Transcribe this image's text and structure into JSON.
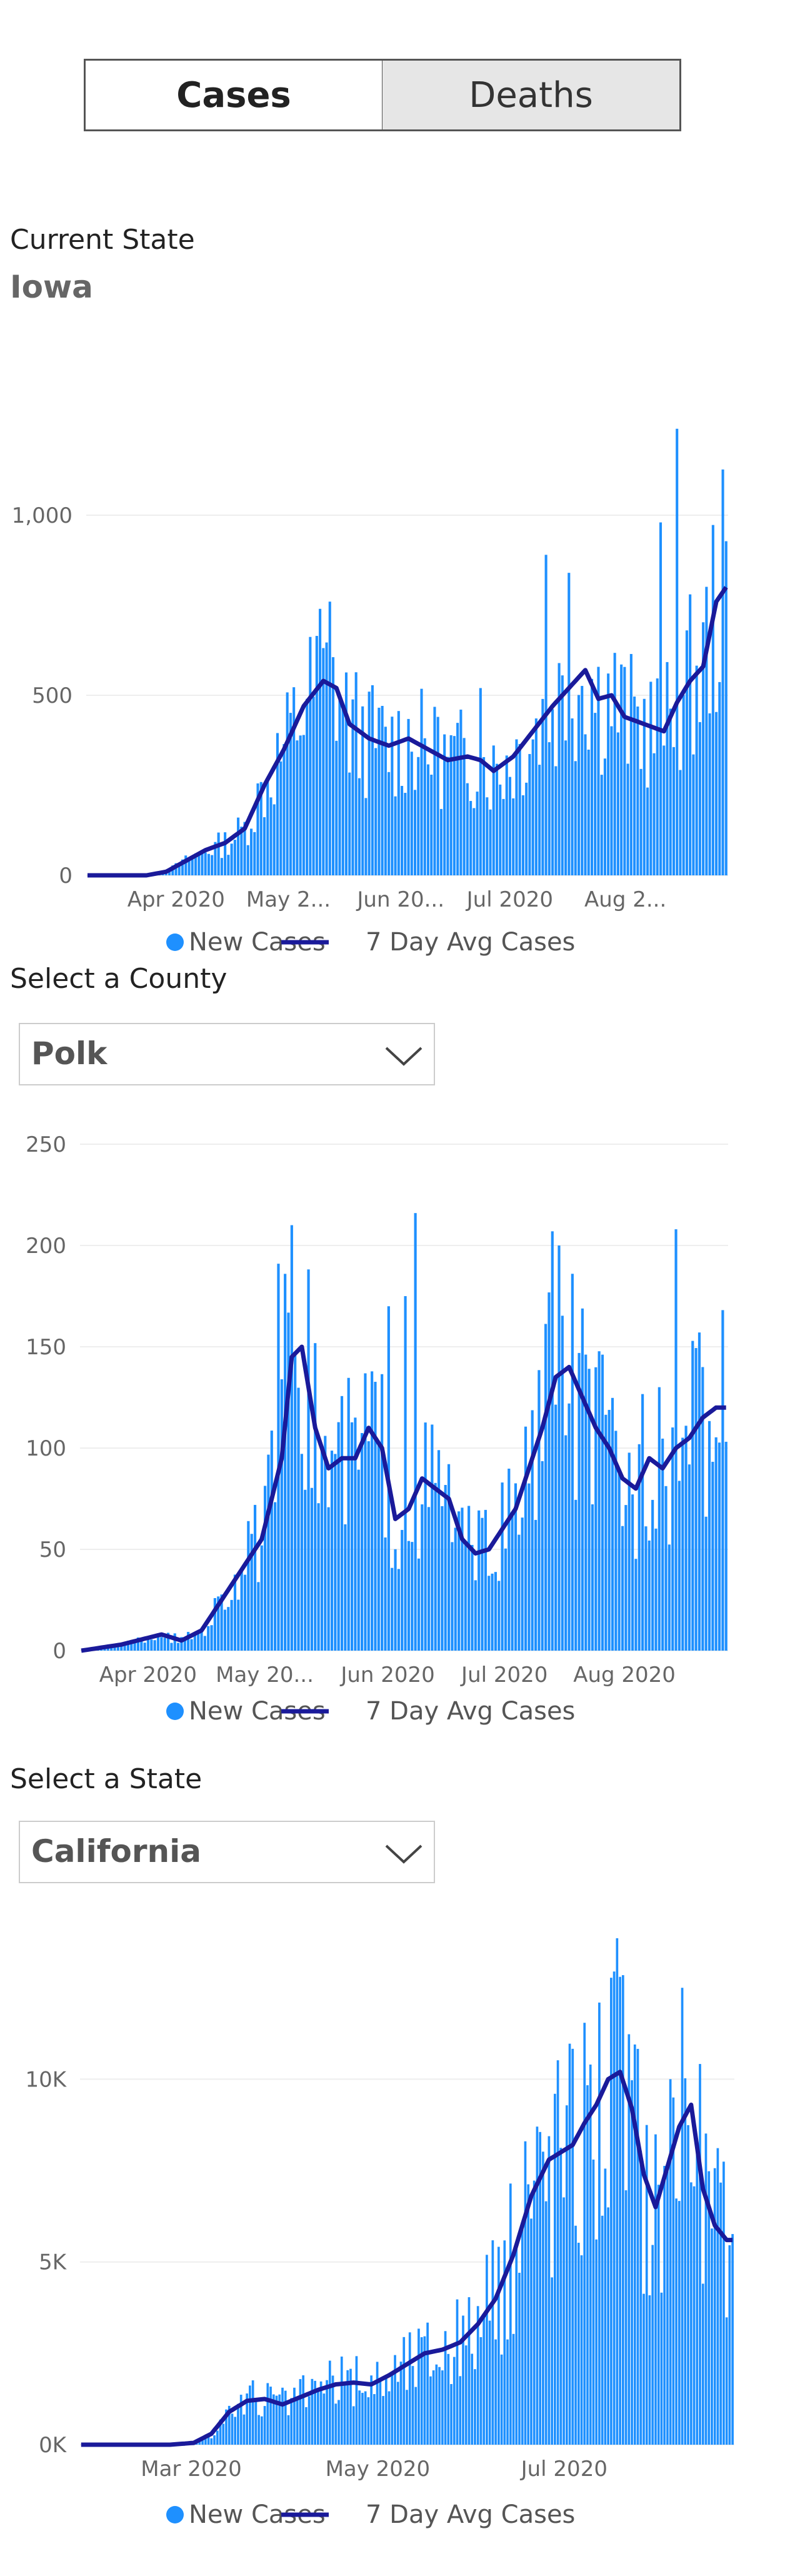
{
  "toggle": {
    "cases_label": "Cases",
    "deaths_label": "Deaths",
    "selected": "Cases"
  },
  "current_state": {
    "label": "Current State",
    "value": "Iowa"
  },
  "county_select": {
    "label": "Select a County",
    "value": "Polk"
  },
  "state_select": {
    "label": "Select a State",
    "value": "California"
  },
  "colors": {
    "bar": "#1e90ff",
    "avg_line": "#1a1a9a",
    "grid": "#eeeeee"
  },
  "legend": {
    "bar_label": "New Cases",
    "line_label": "7 Day Avg Cases"
  },
  "chart_data": [
    {
      "type": "bar",
      "name": "iowa",
      "x_tick_labels": [
        "Apr 2020",
        "May 2...",
        "Jun 20...",
        "Jul 2020",
        "Aug 2..."
      ],
      "y_tick_labels": [
        "0",
        "500",
        "1,000"
      ],
      "ylim": [
        0,
        1250
      ],
      "grid": true,
      "legend_position": "bottom",
      "series": [
        {
          "name": "New Cases",
          "kind": "bar"
        },
        {
          "name": "7 Day Avg Cases",
          "kind": "line"
        }
      ],
      "x_range": [
        "2020-03-01",
        "2020-08-31"
      ],
      "anchors_daily": [
        [
          0,
          0
        ],
        [
          18,
          0
        ],
        [
          24,
          10
        ],
        [
          30,
          40
        ],
        [
          36,
          70
        ],
        [
          42,
          90
        ],
        [
          48,
          130
        ],
        [
          54,
          250
        ],
        [
          60,
          350
        ],
        [
          66,
          470
        ],
        [
          72,
          540
        ],
        [
          76,
          520
        ],
        [
          80,
          420
        ],
        [
          86,
          380
        ],
        [
          92,
          360
        ],
        [
          98,
          380
        ],
        [
          104,
          350
        ],
        [
          110,
          320
        ],
        [
          116,
          330
        ],
        [
          120,
          320
        ],
        [
          124,
          290
        ],
        [
          130,
          330
        ],
        [
          136,
          400
        ],
        [
          142,
          470
        ],
        [
          148,
          530
        ],
        [
          152,
          570
        ],
        [
          156,
          490
        ],
        [
          160,
          500
        ],
        [
          164,
          440
        ],
        [
          170,
          420
        ],
        [
          176,
          400
        ],
        [
          180,
          480
        ],
        [
          184,
          540
        ],
        [
          188,
          580
        ],
        [
          192,
          760
        ],
        [
          195,
          800
        ]
      ],
      "peaks": [
        [
          180,
          1240
        ],
        [
          175,
          980
        ],
        [
          74,
          760
        ],
        [
          71,
          740
        ],
        [
          140,
          890
        ],
        [
          147,
          840
        ],
        [
          120,
          520
        ],
        [
          107,
          440
        ]
      ]
    },
    {
      "type": "bar",
      "name": "polk",
      "x_tick_labels": [
        "Apr 2020",
        "May 20...",
        "Jun 2020",
        "Jul 2020",
        "Aug 2020"
      ],
      "y_tick_labels": [
        "0",
        "50",
        "100",
        "150",
        "200",
        "250"
      ],
      "ylim": [
        0,
        250
      ],
      "grid": true,
      "legend_position": "bottom",
      "series": [
        {
          "name": "New Cases",
          "kind": "bar"
        },
        {
          "name": "7 Day Avg Cases",
          "kind": "line"
        }
      ],
      "x_range": [
        "2020-03-01",
        "2020-08-31"
      ],
      "anchors_daily": [
        [
          0,
          0
        ],
        [
          12,
          3
        ],
        [
          24,
          8
        ],
        [
          30,
          5
        ],
        [
          36,
          10
        ],
        [
          42,
          25
        ],
        [
          48,
          40
        ],
        [
          54,
          55
        ],
        [
          60,
          95
        ],
        [
          63,
          145
        ],
        [
          66,
          150
        ],
        [
          70,
          110
        ],
        [
          74,
          90
        ],
        [
          78,
          95
        ],
        [
          82,
          95
        ],
        [
          86,
          110
        ],
        [
          90,
          100
        ],
        [
          94,
          65
        ],
        [
          98,
          70
        ],
        [
          102,
          85
        ],
        [
          106,
          80
        ],
        [
          110,
          75
        ],
        [
          114,
          55
        ],
        [
          118,
          48
        ],
        [
          122,
          50
        ],
        [
          126,
          60
        ],
        [
          130,
          70
        ],
        [
          134,
          90
        ],
        [
          138,
          110
        ],
        [
          142,
          135
        ],
        [
          146,
          140
        ],
        [
          150,
          125
        ],
        [
          154,
          110
        ],
        [
          158,
          100
        ],
        [
          162,
          85
        ],
        [
          166,
          80
        ],
        [
          170,
          95
        ],
        [
          174,
          90
        ],
        [
          178,
          100
        ],
        [
          182,
          105
        ],
        [
          186,
          115
        ],
        [
          190,
          120
        ],
        [
          193,
          120
        ]
      ],
      "peaks": [
        [
          100,
          216
        ],
        [
          141,
          207
        ],
        [
          178,
          208
        ],
        [
          143,
          200
        ],
        [
          59,
          191
        ],
        [
          61,
          186
        ],
        [
          97,
          175
        ],
        [
          92,
          170
        ]
      ]
    },
    {
      "type": "bar",
      "name": "california",
      "x_tick_labels": [
        "Mar 2020",
        "May 2020",
        "Jul 2020"
      ],
      "y_tick_labels": [
        "0K",
        "5K",
        "10K"
      ],
      "ylim": [
        0,
        13000
      ],
      "grid": true,
      "legend_position": "bottom",
      "series": [
        {
          "name": "New Cases",
          "kind": "bar"
        },
        {
          "name": "7 Day Avg Cases",
          "kind": "line"
        }
      ],
      "x_range": [
        "2020-01-26",
        "2020-08-31"
      ],
      "anchors_daily": [
        [
          0,
          0
        ],
        [
          30,
          0
        ],
        [
          38,
          50
        ],
        [
          44,
          300
        ],
        [
          50,
          900
        ],
        [
          56,
          1200
        ],
        [
          62,
          1250
        ],
        [
          68,
          1100
        ],
        [
          74,
          1300
        ],
        [
          80,
          1500
        ],
        [
          86,
          1650
        ],
        [
          92,
          1700
        ],
        [
          98,
          1650
        ],
        [
          104,
          1900
        ],
        [
          110,
          2200
        ],
        [
          116,
          2500
        ],
        [
          122,
          2600
        ],
        [
          128,
          2800
        ],
        [
          134,
          3300
        ],
        [
          140,
          4000
        ],
        [
          146,
          5200
        ],
        [
          152,
          6800
        ],
        [
          158,
          7800
        ],
        [
          162,
          8000
        ],
        [
          166,
          8200
        ],
        [
          170,
          8800
        ],
        [
          174,
          9300
        ],
        [
          178,
          10000
        ],
        [
          182,
          10200
        ],
        [
          186,
          9200
        ],
        [
          190,
          7400
        ],
        [
          194,
          6500
        ],
        [
          198,
          7600
        ],
        [
          202,
          8700
        ],
        [
          206,
          9300
        ],
        [
          210,
          7000
        ],
        [
          214,
          6000
        ],
        [
          218,
          5600
        ],
        [
          220,
          5600
        ]
      ],
      "peaks": [
        [
          182,
          12800
        ],
        [
          203,
          12500
        ],
        [
          172,
          10400
        ],
        [
          199,
          10000
        ],
        [
          150,
          8300
        ],
        [
          160,
          9600
        ]
      ]
    }
  ]
}
